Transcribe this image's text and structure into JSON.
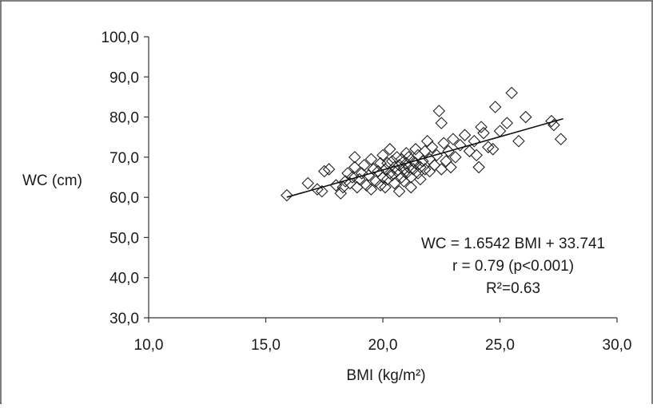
{
  "chart_data": {
    "type": "scatter",
    "xlabel": "BMI (kg/m²)",
    "ylabel": "WC (cm)",
    "xlim": [
      10,
      30
    ],
    "ylim": [
      30,
      100
    ],
    "x_ticks": [
      "10,0",
      "15,0",
      "20,0",
      "25,0",
      "30,0"
    ],
    "y_ticks": [
      "30,0",
      "40,0",
      "50,0",
      "60,0",
      "70,0",
      "80,0",
      "90,0",
      "100,0"
    ],
    "x_tick_values": [
      10,
      15,
      20,
      25,
      30
    ],
    "y_tick_values": [
      30,
      40,
      50,
      60,
      70,
      80,
      90,
      100
    ],
    "grid": false,
    "marker": "diamond-open",
    "series": [
      {
        "points": [
          [
            15.9,
            60.5
          ],
          [
            16.8,
            63.5
          ],
          [
            17.2,
            62.0
          ],
          [
            17.5,
            66.5
          ],
          [
            17.7,
            67.0
          ],
          [
            17.4,
            61.5
          ],
          [
            18.0,
            63.0
          ],
          [
            18.2,
            61.0
          ],
          [
            18.3,
            62.5
          ],
          [
            18.4,
            64.0
          ],
          [
            18.5,
            66.0
          ],
          [
            18.6,
            63.5
          ],
          [
            18.7,
            65.0
          ],
          [
            18.8,
            67.5
          ],
          [
            18.8,
            70.0
          ],
          [
            18.9,
            62.5
          ],
          [
            19.0,
            64.5
          ],
          [
            19.1,
            66.0
          ],
          [
            19.2,
            68.0
          ],
          [
            19.3,
            63.0
          ],
          [
            19.4,
            65.5
          ],
          [
            19.5,
            69.5
          ],
          [
            19.5,
            62.0
          ],
          [
            19.6,
            67.0
          ],
          [
            19.7,
            64.0
          ],
          [
            19.8,
            66.5
          ],
          [
            19.9,
            68.5
          ],
          [
            19.9,
            63.0
          ],
          [
            20.0,
            65.0
          ],
          [
            20.0,
            70.5
          ],
          [
            20.1,
            67.0
          ],
          [
            20.1,
            62.5
          ],
          [
            20.2,
            68.5
          ],
          [
            20.2,
            64.5
          ],
          [
            20.3,
            72.0
          ],
          [
            20.3,
            66.0
          ],
          [
            20.4,
            69.0
          ],
          [
            20.4,
            65.5
          ],
          [
            20.5,
            67.5
          ],
          [
            20.5,
            63.5
          ],
          [
            20.6,
            70.0
          ],
          [
            20.6,
            66.5
          ],
          [
            20.7,
            68.0
          ],
          [
            20.7,
            61.5
          ],
          [
            20.8,
            65.0
          ],
          [
            20.8,
            69.5
          ],
          [
            20.9,
            67.0
          ],
          [
            20.9,
            64.0
          ],
          [
            21.0,
            71.0
          ],
          [
            21.0,
            68.5
          ],
          [
            21.0,
            66.0
          ],
          [
            21.1,
            70.0
          ],
          [
            21.1,
            67.5
          ],
          [
            21.2,
            65.0
          ],
          [
            21.2,
            62.5
          ],
          [
            21.3,
            69.0
          ],
          [
            21.3,
            67.0
          ],
          [
            21.4,
            72.0
          ],
          [
            21.4,
            68.5
          ],
          [
            21.5,
            66.0
          ],
          [
            21.5,
            70.5
          ],
          [
            21.6,
            67.5
          ],
          [
            21.6,
            64.5
          ],
          [
            21.7,
            69.0
          ],
          [
            21.8,
            71.5
          ],
          [
            21.8,
            67.0
          ],
          [
            21.9,
            74.0
          ],
          [
            22.0,
            69.5
          ],
          [
            22.0,
            66.5
          ],
          [
            22.1,
            72.5
          ],
          [
            22.2,
            68.0
          ],
          [
            22.3,
            70.5
          ],
          [
            22.4,
            81.5
          ],
          [
            22.5,
            78.5
          ],
          [
            22.5,
            67.0
          ],
          [
            22.6,
            73.5
          ],
          [
            22.7,
            69.0
          ],
          [
            22.8,
            71.5
          ],
          [
            22.9,
            67.5
          ],
          [
            23.0,
            74.5
          ],
          [
            23.1,
            70.0
          ],
          [
            23.3,
            73.0
          ],
          [
            23.5,
            75.5
          ],
          [
            23.7,
            71.5
          ],
          [
            23.9,
            74.0
          ],
          [
            24.0,
            70.5
          ],
          [
            24.1,
            67.5
          ],
          [
            24.2,
            77.5
          ],
          [
            24.3,
            76.0
          ],
          [
            24.5,
            72.5
          ],
          [
            24.7,
            72.0
          ],
          [
            24.8,
            82.5
          ],
          [
            25.0,
            76.5
          ],
          [
            25.3,
            78.5
          ],
          [
            25.5,
            86.0
          ],
          [
            25.8,
            74.0
          ],
          [
            26.1,
            80.0
          ],
          [
            27.2,
            79.0
          ],
          [
            27.3,
            78.0
          ],
          [
            27.6,
            74.5
          ]
        ]
      }
    ],
    "trendline": {
      "slope": 1.6542,
      "intercept": 33.741,
      "x_range": [
        15.9,
        27.7
      ]
    },
    "annotations": [
      "WC = 1.6542 BMI + 33.741",
      "r = 0.79 (p<0.001)",
      "R²=0.63"
    ]
  },
  "colors": {
    "marker_stroke": "#222222",
    "axis": "#333333",
    "frame": "#555555",
    "trendline": "#111111"
  }
}
